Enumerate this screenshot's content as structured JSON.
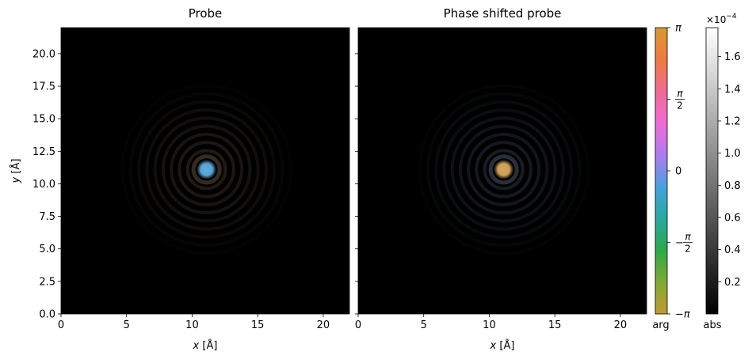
{
  "chart_data": [
    {
      "type": "heatmap",
      "title": "Probe",
      "xlabel_var": "x",
      "xlabel_unit": "[Å]",
      "ylabel_var": "y",
      "ylabel_unit": "[Å]",
      "xlim": [
        0,
        22
      ],
      "ylim": [
        0,
        22
      ],
      "xticks": [
        0,
        5,
        10,
        15,
        20
      ],
      "xtick_labels": [
        "0",
        "5",
        "10",
        "15",
        "20"
      ],
      "yticks": [
        0,
        2.5,
        5,
        7.5,
        10,
        12.5,
        15,
        17.5,
        20
      ],
      "ytick_labels": [
        "0.0",
        "2.5",
        "5.0",
        "7.5",
        "10.0",
        "12.5",
        "15.0",
        "17.5",
        "20.0"
      ],
      "center": [
        11.1,
        11.1
      ],
      "core_color": "#5aaee0",
      "ring_color": "#3b2f22"
    },
    {
      "type": "heatmap",
      "title": "Phase shifted probe",
      "xlabel_var": "x",
      "xlabel_unit": "[Å]",
      "xlim": [
        0,
        22
      ],
      "ylim": [
        0,
        22
      ],
      "xticks": [
        0,
        5,
        10,
        15,
        20
      ],
      "xtick_labels": [
        "0",
        "5",
        "10",
        "15",
        "20"
      ],
      "yticks": [
        0,
        2.5,
        5,
        7.5,
        10,
        12.5,
        15,
        17.5,
        20
      ],
      "center": [
        11.1,
        11.1
      ],
      "core_color": "#d6a85a",
      "ring_color": "#2a3440"
    }
  ],
  "colorbars": {
    "phase": {
      "label": "arg",
      "range": [
        -3.14159,
        3.14159
      ],
      "ticks": [
        {
          "value": 3.14159,
          "label": "π"
        },
        {
          "value": 1.5708,
          "label": "π/2"
        },
        {
          "value": 0,
          "label": "0"
        },
        {
          "value": -1.5708,
          "label": "−π/2"
        },
        {
          "value": -3.14159,
          "label": "−π"
        }
      ],
      "colors": [
        "#c49a2f",
        "#7faa31",
        "#2aaa45",
        "#27a9a0",
        "#45a2e0",
        "#b07af0",
        "#f06ad6",
        "#f06a92",
        "#f07a40",
        "#d69a2f"
      ]
    },
    "abs": {
      "label": "abs",
      "multiplier": "×10",
      "exponent": "−4",
      "range": [
        0,
        1.78
      ],
      "ticks": [
        0.2,
        0.4,
        0.6,
        0.8,
        1.0,
        1.2,
        1.4,
        1.6
      ],
      "tick_labels": [
        "0.2",
        "0.4",
        "0.6",
        "0.8",
        "1.0",
        "1.2",
        "1.4",
        "1.6"
      ],
      "colors": [
        "#000000",
        "#ffffff"
      ]
    }
  }
}
